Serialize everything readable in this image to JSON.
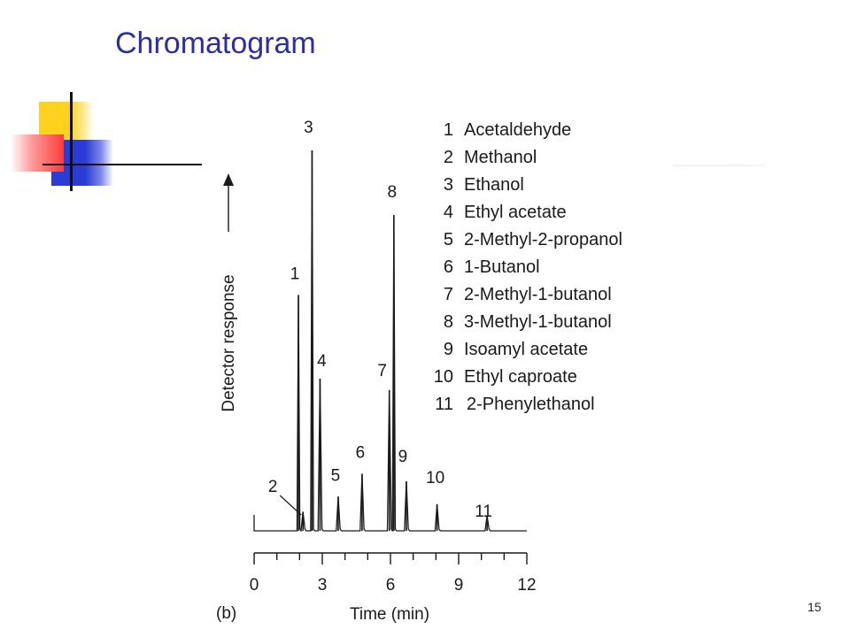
{
  "slide": {
    "title": "Chromatogram",
    "page_number": "15"
  },
  "chart_data": {
    "type": "line",
    "subfigure_label": "(b)",
    "xlabel": "Time (min)",
    "ylabel": "Detector response",
    "xlim": [
      0,
      12
    ],
    "x_ticks": [
      "0",
      "3",
      "6",
      "9",
      "12"
    ],
    "grid": false,
    "legend_placement": "top-right",
    "peaks": [
      {
        "label": "1",
        "name": "Acetaldehyde",
        "time": 1.95,
        "height": 0.62
      },
      {
        "label": "2",
        "name": "Methanol",
        "time": 2.15,
        "height": 0.05
      },
      {
        "label": "3",
        "name": "Ethanol",
        "time": 2.55,
        "height": 1.0
      },
      {
        "label": "4",
        "name": "Ethyl acetate",
        "time": 2.9,
        "height": 0.4
      },
      {
        "label": "5",
        "name": "2-Methyl-2-propanol",
        "time": 3.7,
        "height": 0.09
      },
      {
        "label": "6",
        "name": "1-Butanol",
        "time": 4.75,
        "height": 0.15
      },
      {
        "label": "7",
        "name": "2-Methyl-1-butanol",
        "time": 5.95,
        "height": 0.37
      },
      {
        "label": "8",
        "name": "3-Methyl-1-butanol",
        "time": 6.15,
        "height": 0.83
      },
      {
        "label": "9",
        "name": "Isoamyl acetate",
        "time": 6.7,
        "height": 0.13
      },
      {
        "label": "10",
        "name": "Ethyl caproate",
        "time": 8.05,
        "height": 0.07
      },
      {
        "label": "11",
        "name": "2-Phenylethanol",
        "time": 10.25,
        "height": 0.04
      }
    ]
  }
}
